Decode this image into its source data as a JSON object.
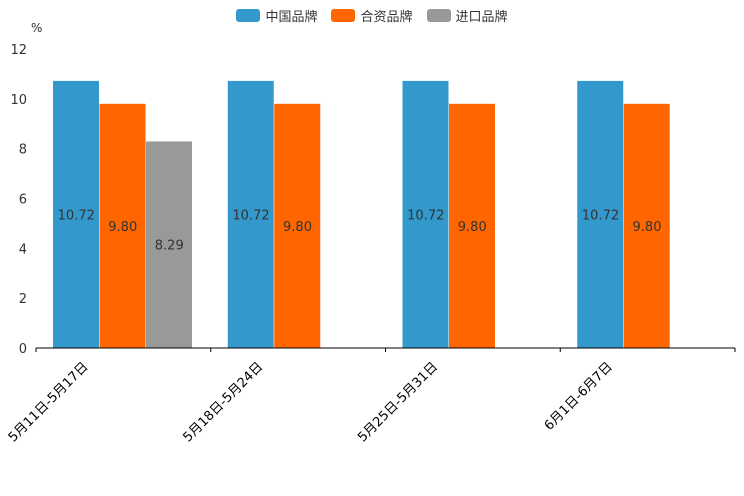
{
  "chart_data": {
    "type": "bar",
    "title": "",
    "ylabel": "%",
    "xlabel": "",
    "ylim": [
      0,
      12
    ],
    "yticks": [
      0,
      2,
      4,
      6,
      8,
      10,
      12
    ],
    "categories": [
      "5月11日-5月17日",
      "5月18日-5月24日",
      "5月25日-5月31日",
      "6月1日-6月7日"
    ],
    "series": [
      {
        "name": "中国品牌",
        "color": "#3399cc",
        "values": [
          10.72,
          10.72,
          10.72,
          10.72
        ],
        "labels": [
          "10.72",
          "10.72",
          "10.72",
          "10.72"
        ]
      },
      {
        "name": "合资品牌",
        "color": "#ff6600",
        "values": [
          9.8,
          9.8,
          9.8,
          9.8
        ],
        "labels": [
          "9.80",
          "9.80",
          "9.80",
          "9.80"
        ]
      },
      {
        "name": "进口品牌",
        "color": "#999999",
        "values": [
          8.29,
          null,
          null,
          null
        ],
        "labels": [
          "8.29",
          null,
          null,
          null
        ]
      }
    ],
    "legend_position": "top-center",
    "grid": false
  }
}
